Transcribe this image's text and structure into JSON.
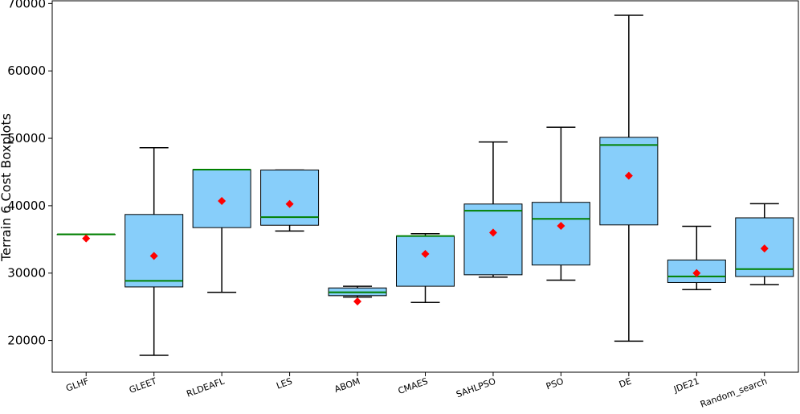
{
  "chart_data": {
    "type": "boxplot",
    "ylabel": "Terrain 6 Cost Boxplots",
    "xlabel": "",
    "ylim": [
      15300,
      70400
    ],
    "yticks": [
      20000,
      30000,
      40000,
      50000,
      60000,
      70000
    ],
    "ytick_labels": [
      "20000",
      "30000",
      "40000",
      "50000",
      "60000",
      "70000"
    ],
    "colors": {
      "box_fill": "#87cefa",
      "box_edge": "#000000",
      "median": "#008000",
      "mean_marker": "#ff0000",
      "whisker": "#000000"
    },
    "categories": [
      "GLHF",
      "GLEET",
      "RLDEAFL",
      "LES",
      "ABOM",
      "CMAES",
      "SAHLPSO",
      "PSO",
      "DE",
      "JDE21",
      "Random_search"
    ],
    "boxes": [
      {
        "name": "GLHF",
        "whislo": 35750,
        "q1": 35750,
        "med": 35750,
        "q3": 35750,
        "whishi": 35750,
        "mean": 35150
      },
      {
        "name": "GLEET",
        "whislo": 17800,
        "q1": 27950,
        "med": 28850,
        "q3": 38700,
        "whishi": 48600,
        "mean": 32550
      },
      {
        "name": "RLDEAFL",
        "whislo": 27150,
        "q1": 36750,
        "med": 45350,
        "q3": 45350,
        "whishi": 45350,
        "mean": 40700
      },
      {
        "name": "LES",
        "whislo": 36250,
        "q1": 37100,
        "med": 38300,
        "q3": 45300,
        "whishi": 45300,
        "mean": 40250
      },
      {
        "name": "ABOM",
        "whislo": 26450,
        "q1": 26650,
        "med": 27150,
        "q3": 27800,
        "whishi": 28050,
        "mean": 25800
      },
      {
        "name": "CMAES",
        "whislo": 25650,
        "q1": 28050,
        "med": 35500,
        "q3": 35500,
        "whishi": 35850,
        "mean": 32850
      },
      {
        "name": "SAHLPSO",
        "whislo": 29400,
        "q1": 29750,
        "med": 39250,
        "q3": 40250,
        "whishi": 49450,
        "mean": 36000
      },
      {
        "name": "PSO",
        "whislo": 28950,
        "q1": 31200,
        "med": 38050,
        "q3": 40500,
        "whishi": 51650,
        "mean": 37000
      },
      {
        "name": "DE",
        "whislo": 19900,
        "q1": 37150,
        "med": 49000,
        "q3": 50150,
        "whishi": 68250,
        "mean": 44450
      },
      {
        "name": "JDE21",
        "whislo": 27550,
        "q1": 28600,
        "med": 29500,
        "q3": 31950,
        "whishi": 36950,
        "mean": 30000
      },
      {
        "name": "Random_search",
        "whislo": 28300,
        "q1": 29500,
        "med": 30600,
        "q3": 38200,
        "whishi": 40300,
        "mean": 33650
      }
    ]
  }
}
